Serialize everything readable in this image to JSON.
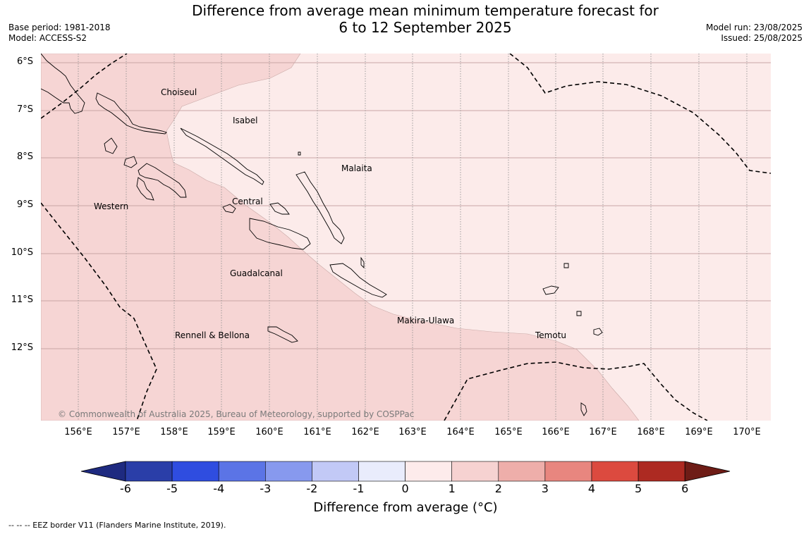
{
  "title": {
    "line1": "Difference from average mean minimum temperature forecast for",
    "line2": "6 to 12 September 2025"
  },
  "meta": {
    "base_period": "Base period: 1981-2018",
    "model": "Model: ACCESS-S2",
    "model_run": "Model run: 23/08/2025",
    "issued": "Issued: 25/08/2025"
  },
  "map": {
    "lat_labels": [
      "6°S",
      "7°S",
      "8°S",
      "9°S",
      "10°S",
      "11°S",
      "12°S"
    ],
    "lon_labels": [
      "156°E",
      "157°E",
      "158°E",
      "159°E",
      "160°E",
      "161°E",
      "162°E",
      "163°E",
      "164°E",
      "165°E",
      "166°E",
      "167°E",
      "168°E",
      "169°E",
      "170°E"
    ],
    "places": {
      "choiseul": "Choiseul",
      "isabel": "Isabel",
      "malaita": "Malaita",
      "western": "Western",
      "central": "Central",
      "guadalcanal": "Guadalcanal",
      "makira": "Makira-Ulawa",
      "rennell": "Rennell & Bellona",
      "temotu": "Temotu"
    },
    "copyright": "© Commonwealth of Australia 2025, Bureau of Meteorology, supported by COSPPac",
    "fill_colors": {
      "range_0_1": "#fcebea",
      "range_1_2": "#f6d5d4"
    }
  },
  "colorbar": {
    "ticks": [
      "-6",
      "-5",
      "-4",
      "-3",
      "-2",
      "-1",
      "0",
      "1",
      "2",
      "3",
      "4",
      "5",
      "6"
    ],
    "colors": [
      "#1e2a80",
      "#2a3ea8",
      "#2f4de0",
      "#5b74e6",
      "#8799ee",
      "#c2c9f6",
      "#e9ecfc",
      "#fdebeb",
      "#f6d2d1",
      "#eeaeaa",
      "#e8867f",
      "#dc4a3f",
      "#ad2a22",
      "#6e1c16"
    ],
    "label": "Difference from average (°C)"
  },
  "footnote": "--  --  -- EEZ border V11 (Flanders Marine Institute, 2019)."
}
